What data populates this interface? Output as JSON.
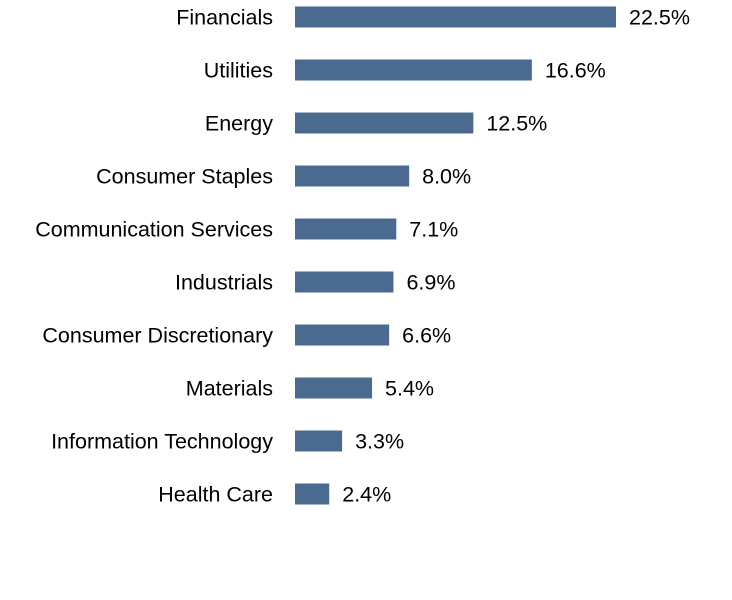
{
  "chart_data": {
    "type": "bar",
    "orientation": "horizontal",
    "categories": [
      "Financials",
      "Utilities",
      "Energy",
      "Consumer Staples",
      "Communication Services",
      "Industrials",
      "Consumer Discretionary",
      "Materials",
      "Information Technology",
      "Health Care"
    ],
    "values": [
      22.5,
      16.6,
      12.5,
      8.0,
      7.1,
      6.9,
      6.6,
      5.4,
      3.3,
      2.4
    ],
    "value_labels": [
      "22.5%",
      "16.6%",
      "12.5%",
      "8.0%",
      "7.1%",
      "6.9%",
      "6.6%",
      "5.4%",
      "3.3%",
      "2.4%"
    ],
    "unit": "%",
    "title": "",
    "xlabel": "",
    "ylabel": "",
    "xlim": [
      0,
      22.5
    ],
    "grid": false,
    "legend": "none",
    "bar_color": "#4a6b8f"
  }
}
